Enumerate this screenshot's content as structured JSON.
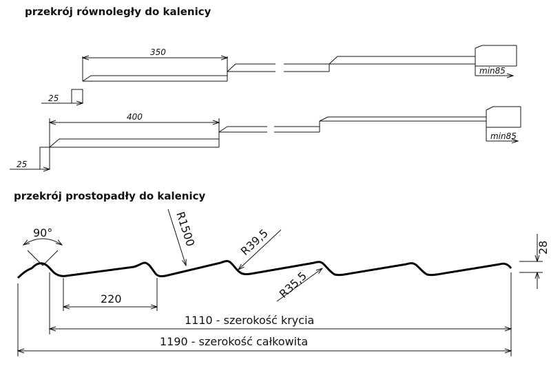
{
  "section_parallel": {
    "title": "przekrój równoległy do kalenicy",
    "profile_a": {
      "length_label": "350",
      "step_label": "25",
      "overlap_label": "min85"
    },
    "profile_b": {
      "length_label": "400",
      "step_label": "25",
      "overlap_label": "min85"
    }
  },
  "section_perpendicular": {
    "title": "przekrój prostopadły do kalenicy",
    "angle_label": "90°",
    "radius_large": "R1500",
    "radius_top": "R39,5",
    "radius_bottom": "R35,5",
    "height_label": "28",
    "pitch_label": "220",
    "cover_width_label": "1110 - szerokość krycia",
    "total_width_label": "1190 - szerokość całkowita"
  },
  "colors": {
    "line": "#111111",
    "profile": "#000000",
    "background": "#ffffff"
  }
}
